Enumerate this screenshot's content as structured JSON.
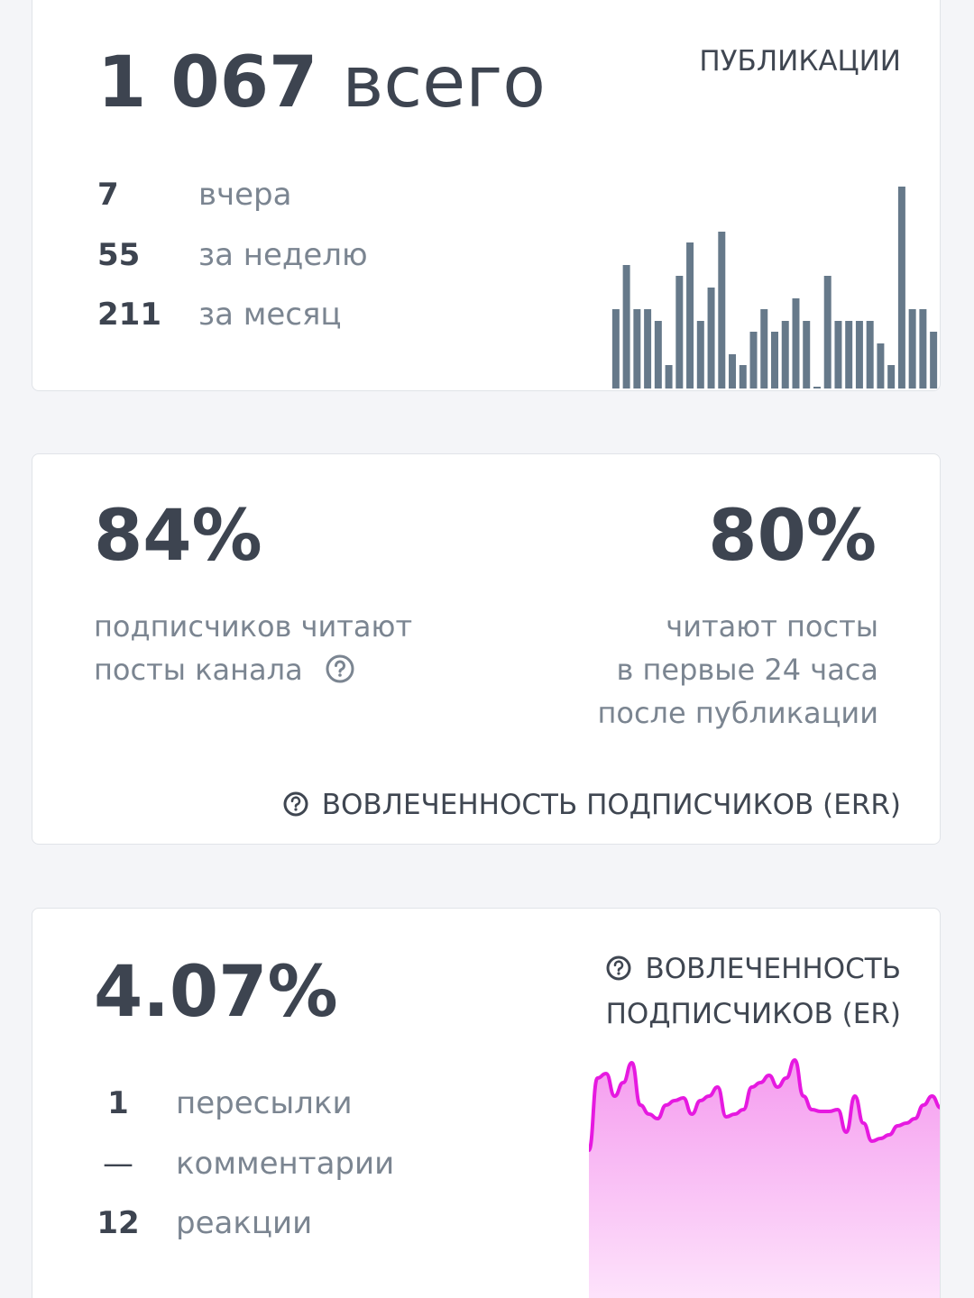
{
  "publications": {
    "total": "1 067",
    "total_label": "всего",
    "title": "ПУБЛИКАЦИИ",
    "stats": [
      {
        "value": "7",
        "label": "вчера"
      },
      {
        "value": "55",
        "label": "за неделю"
      },
      {
        "value": "211",
        "label": "за месяц"
      }
    ],
    "chart_data": {
      "type": "bar",
      "color": "#66798a",
      "ylim": [
        0,
        240
      ],
      "values": [
        88,
        137,
        88,
        88,
        75,
        26,
        125,
        162,
        75,
        112,
        174,
        38,
        26,
        63,
        88,
        63,
        75,
        100,
        75,
        2,
        125,
        75,
        75,
        75,
        75,
        50,
        26,
        224,
        88,
        88,
        63
      ]
    }
  },
  "reach": {
    "left": {
      "value": "84%",
      "lines": [
        "подписчиков читают",
        "посты канала"
      ]
    },
    "right": {
      "value": "80%",
      "lines": [
        "читают посты",
        "в первые 24 часа",
        "после публикации"
      ]
    },
    "footer": "ВОВЛЕЧЕННОСТЬ ПОДПИСЧИКОВ (ERR)"
  },
  "engagement": {
    "value": "4.07%",
    "title_lines": [
      "ВОВЛЕЧЕННОСТЬ",
      "ПОДПИСЧИКОВ (ER)"
    ],
    "stats": [
      {
        "value": "1",
        "label": "пересылки"
      },
      {
        "value": "—",
        "label": "комментарии"
      },
      {
        "value": "12",
        "label": "реакции"
      }
    ],
    "chart_data": {
      "type": "area",
      "color": "#e619e0",
      "ylim": [
        0,
        280
      ],
      "values": [
        165,
        245,
        250,
        225,
        240,
        262,
        215,
        205,
        200,
        215,
        220,
        223,
        205,
        220,
        225,
        235,
        202,
        205,
        210,
        235,
        240,
        248,
        235,
        245,
        265,
        225,
        210,
        208,
        208,
        210,
        185,
        225,
        195,
        175,
        178,
        182,
        192,
        195,
        200,
        215,
        225,
        212
      ]
    }
  }
}
